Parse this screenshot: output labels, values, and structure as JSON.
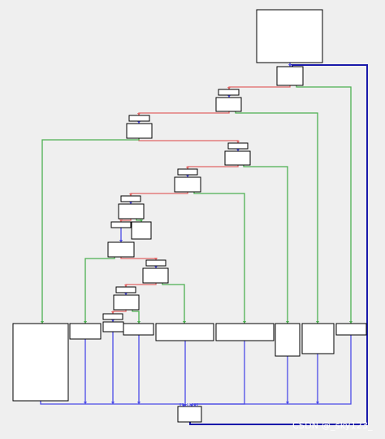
{
  "watermark": "CSDN @_sky123_",
  "colors": {
    "background": "#efefef",
    "block_fill": "#ffffff",
    "block_border": "#000000",
    "true_edge": "#e06666",
    "false_edge": "#4caf50",
    "unconditional_edge": "#4a4ae6",
    "loop_back_edge": "#1a1aaa"
  },
  "blocks": [
    {
      "id": "entry"
    },
    {
      "id": "dispatcher"
    },
    {
      "id": "cmp-1-label"
    },
    {
      "id": "cmp-1"
    },
    {
      "id": "cmp-2-label"
    },
    {
      "id": "cmp-2"
    },
    {
      "id": "cmp-3-label"
    },
    {
      "id": "cmp-3"
    },
    {
      "id": "cmp-4-label"
    },
    {
      "id": "cmp-4"
    },
    {
      "id": "cmp-5-label"
    },
    {
      "id": "cmp-5"
    },
    {
      "id": "cmp-6-label"
    },
    {
      "id": "cmp-6"
    },
    {
      "id": "cmp-6-side"
    },
    {
      "id": "cmp-7"
    },
    {
      "id": "cmp-8-label"
    },
    {
      "id": "cmp-8"
    },
    {
      "id": "cmp-9-label"
    },
    {
      "id": "cmp-9"
    },
    {
      "id": "cmp-10-label"
    },
    {
      "id": "cmp-10"
    },
    {
      "id": "case-a"
    },
    {
      "id": "case-b"
    },
    {
      "id": "case-c"
    },
    {
      "id": "case-d"
    },
    {
      "id": "case-e"
    },
    {
      "id": "case-f"
    },
    {
      "id": "case-g"
    },
    {
      "id": "case-h"
    },
    {
      "id": "case-i"
    },
    {
      "id": "merge"
    }
  ]
}
